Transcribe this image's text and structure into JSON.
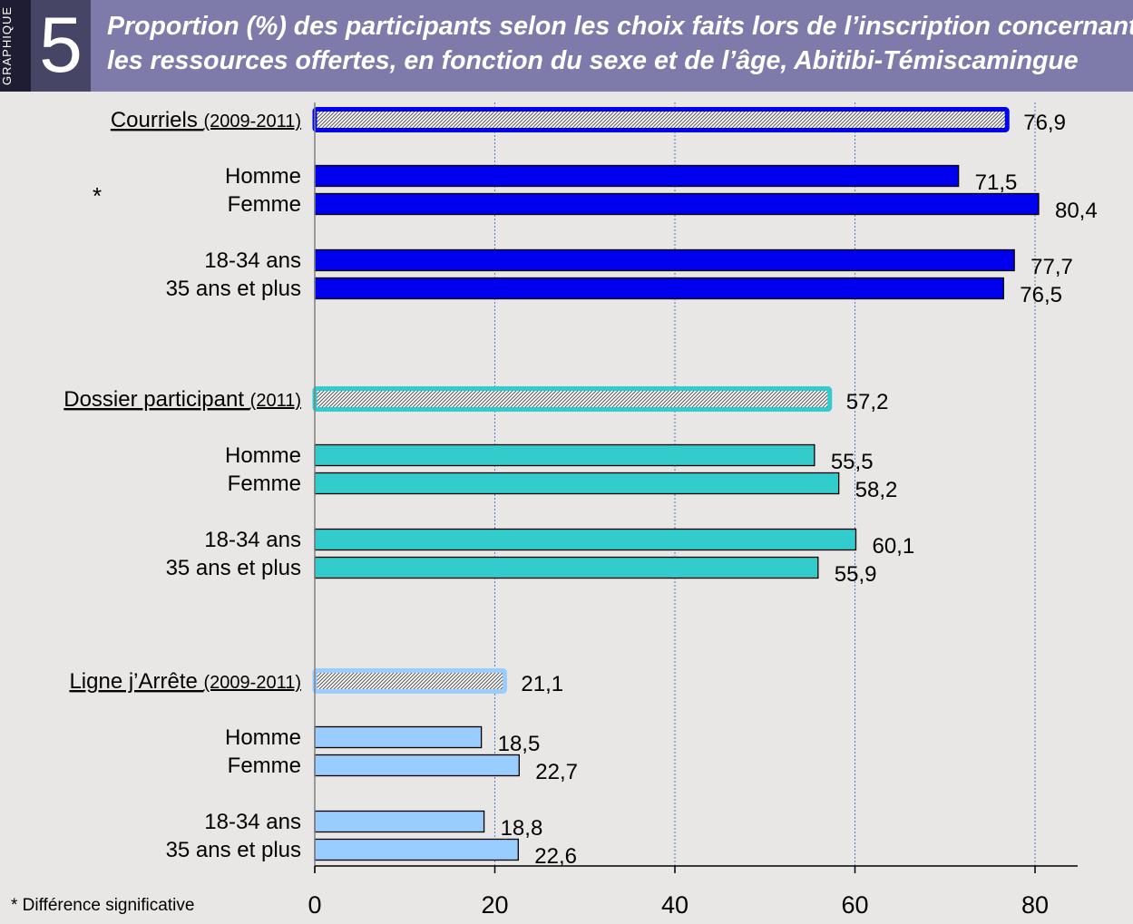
{
  "header": {
    "side_label": "GRAPHIQUE",
    "number": "5",
    "title_line1": "Proportion (%) des participants selon les choix faits lors de l’inscription concernant",
    "title_line2": "les ressources offertes, en fonction du sexe et de l’âge, Abitibi-Témiscamingue"
  },
  "footnote": "* Différence significative",
  "chart_data": {
    "type": "bar",
    "orientation": "horizontal",
    "xlim": [
      0,
      85
    ],
    "xticks": [
      "0",
      "20",
      "40",
      "60",
      "80"
    ],
    "grid": "vertical dotted lines at 20, 40, 60, 80",
    "groups": [
      {
        "name": "Courriels",
        "period": "(2009-2011)",
        "total": 76.9,
        "total_label": "76,9",
        "color": "#0000ee",
        "marker": "*",
        "bars": [
          {
            "label": "Homme",
            "value": 71.5,
            "value_label": "71,5"
          },
          {
            "label": "Femme",
            "value": 80.4,
            "value_label": "80,4"
          },
          {
            "label": "18-34 ans",
            "value": 77.7,
            "value_label": "77,7"
          },
          {
            "label": "35 ans et plus",
            "value": 76.5,
            "value_label": "76,5"
          }
        ]
      },
      {
        "name": "Dossier participant",
        "period": "(2011)",
        "total": 57.2,
        "total_label": "57,2",
        "color": "#33cccc",
        "marker": "",
        "bars": [
          {
            "label": "Homme",
            "value": 55.5,
            "value_label": "55,5"
          },
          {
            "label": "Femme",
            "value": 58.2,
            "value_label": "58,2"
          },
          {
            "label": "18-34 ans",
            "value": 60.1,
            "value_label": "60,1"
          },
          {
            "label": "35 ans et plus",
            "value": 55.9,
            "value_label": "55,9"
          }
        ]
      },
      {
        "name": "Ligne j’Arrête",
        "period": "(2009-2011)",
        "total": 21.1,
        "total_label": "21,1",
        "color": "#99ccff",
        "marker": "",
        "bars": [
          {
            "label": "Homme",
            "value": 18.5,
            "value_label": "18,5"
          },
          {
            "label": "Femme",
            "value": 22.7,
            "value_label": "22,7"
          },
          {
            "label": "18-34 ans",
            "value": 18.8,
            "value_label": "18,8"
          },
          {
            "label": "35 ans et plus",
            "value": 22.6,
            "value_label": "22,6"
          }
        ]
      }
    ]
  }
}
